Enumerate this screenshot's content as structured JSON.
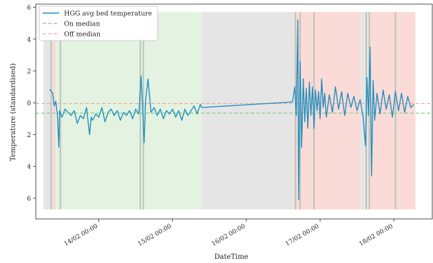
{
  "chart_data": {
    "type": "line",
    "xlabel": "DateTime",
    "ylabel": "Temperature (standardised)",
    "xlim": [
      "2025-02-13T03:30",
      "2025-02-18T12:30"
    ],
    "ylim": [
      -7.3,
      6.2
    ],
    "y_ticks": [
      {
        "value": 6,
        "label": "6"
      },
      {
        "value": 4,
        "label": "4"
      },
      {
        "value": 2,
        "label": "2"
      },
      {
        "value": 0,
        "label": "0"
      },
      {
        "value": -2,
        "label": "2"
      },
      {
        "value": -4,
        "label": "4"
      },
      {
        "value": -6,
        "label": "6"
      }
    ],
    "x_ticks": [
      {
        "value": "2025-02-14T00:00",
        "label": "14/02 00:00"
      },
      {
        "value": "2025-02-15T00:00",
        "label": "15/02 00:00"
      },
      {
        "value": "2025-02-16T00:00",
        "label": "16/02 00:00"
      },
      {
        "value": "2025-02-17T00:00",
        "label": "17/02 00:00"
      },
      {
        "value": "2025-02-18T00:00",
        "label": "18/02 00:00"
      }
    ],
    "legend": {
      "placement": "top-left",
      "entries": [
        {
          "label": "HGG avg bed temperature",
          "style": "solid",
          "color": "#1f8fbf"
        },
        {
          "label": "On median",
          "style": "dashed",
          "color": "#7fc97f"
        },
        {
          "label": "Off median",
          "style": "dashed",
          "color": "#f4a49a"
        }
      ]
    },
    "reference_lines": [
      {
        "name": "On median",
        "y": -0.65,
        "color": "#7fc97f"
      },
      {
        "name": "Off median",
        "y": -0.05,
        "color": "#f4a49a"
      }
    ],
    "regions": [
      {
        "start": "2025-02-13T09:00",
        "end": "2025-02-13T10:00",
        "state": "off",
        "color": "#fadbd8"
      },
      {
        "start": "2025-02-13T10:00",
        "end": "2025-02-15T09:30",
        "state": "on",
        "color": "#e3f2e1"
      },
      {
        "start": "2025-02-15T09:30",
        "end": "2025-02-16T15:30",
        "state": "idle",
        "color": "#e5e5e5"
      },
      {
        "start": "2025-02-16T15:30",
        "end": "2025-02-17T13:00",
        "state": "off",
        "color": "#fadbd8"
      },
      {
        "start": "2025-02-17T13:00",
        "end": "2025-02-17T15:30",
        "state": "idle",
        "color": "#e5e5e5"
      },
      {
        "start": "2025-02-17T15:30",
        "end": "2025-02-18T07:00",
        "state": "off",
        "color": "#fadbd8"
      },
      {
        "start": "2025-02-13T06:00",
        "end": "2025-02-13T09:00",
        "state": "idle",
        "color": "#e5e5e5"
      }
    ],
    "transition_lines": [
      "2025-02-13T08:30",
      "2025-02-13T11:30",
      "2025-02-14T13:30",
      "2025-02-14T14:30",
      "2025-02-16T16:00",
      "2025-02-16T17:30",
      "2025-02-16T22:00",
      "2025-02-17T15:00",
      "2025-02-17T16:00",
      "2025-02-18T00:30"
    ],
    "series": [
      {
        "name": "HGG avg bed temperature",
        "color": "#1f8fbf",
        "points": [
          [
            "2025-02-13T08:00",
            0.85
          ],
          [
            "2025-02-13T09:00",
            0.6
          ],
          [
            "2025-02-13T09:30",
            -0.2
          ],
          [
            "2025-02-13T10:00",
            0.1
          ],
          [
            "2025-02-13T10:30",
            -0.7
          ],
          [
            "2025-02-13T11:00",
            -2.8
          ],
          [
            "2025-02-13T11:15",
            -0.5
          ],
          [
            "2025-02-13T12:00",
            -0.9
          ],
          [
            "2025-02-13T13:00",
            -0.4
          ],
          [
            "2025-02-13T14:00",
            -0.6
          ],
          [
            "2025-02-13T15:00",
            -0.8
          ],
          [
            "2025-02-13T16:00",
            -0.5
          ],
          [
            "2025-02-13T17:00",
            -1.3
          ],
          [
            "2025-02-13T18:00",
            -0.8
          ],
          [
            "2025-02-13T19:00",
            -1.0
          ],
          [
            "2025-02-13T20:00",
            -0.3
          ],
          [
            "2025-02-13T21:00",
            -2.0
          ],
          [
            "2025-02-13T21:30",
            -0.9
          ],
          [
            "2025-02-13T22:00",
            -1.1
          ],
          [
            "2025-02-13T23:00",
            -0.7
          ],
          [
            "2025-02-14T00:00",
            -0.9
          ],
          [
            "2025-02-14T01:00",
            -0.3
          ],
          [
            "2025-02-14T02:00",
            -1.2
          ],
          [
            "2025-02-14T03:00",
            -0.6
          ],
          [
            "2025-02-14T04:00",
            -0.4
          ],
          [
            "2025-02-14T05:00",
            -0.8
          ],
          [
            "2025-02-14T06:00",
            -0.5
          ],
          [
            "2025-02-14T07:00",
            -1.1
          ],
          [
            "2025-02-14T08:00",
            -0.6
          ],
          [
            "2025-02-14T09:00",
            -0.8
          ],
          [
            "2025-02-14T10:00",
            -0.5
          ],
          [
            "2025-02-14T11:00",
            -1.0
          ],
          [
            "2025-02-14T12:00",
            -0.4
          ],
          [
            "2025-02-14T13:00",
            -0.7
          ],
          [
            "2025-02-14T13:45",
            1.7
          ],
          [
            "2025-02-14T14:15",
            -0.4
          ],
          [
            "2025-02-14T14:45",
            -2.5
          ],
          [
            "2025-02-14T15:15",
            0.2
          ],
          [
            "2025-02-14T16:00",
            1.5
          ],
          [
            "2025-02-14T17:00",
            -0.6
          ],
          [
            "2025-02-14T18:00",
            -0.3
          ],
          [
            "2025-02-14T19:00",
            -0.8
          ],
          [
            "2025-02-14T20:00",
            -0.4
          ],
          [
            "2025-02-14T21:00",
            -1.0
          ],
          [
            "2025-02-14T22:00",
            -0.5
          ],
          [
            "2025-02-14T23:00",
            -0.7
          ],
          [
            "2025-02-15T00:00",
            -0.4
          ],
          [
            "2025-02-15T01:00",
            -0.9
          ],
          [
            "2025-02-15T02:00",
            -0.5
          ],
          [
            "2025-02-15T03:00",
            -1.1
          ],
          [
            "2025-02-15T04:00",
            -0.4
          ],
          [
            "2025-02-15T05:00",
            -0.8
          ],
          [
            "2025-02-15T06:00",
            -0.5
          ],
          [
            "2025-02-15T07:00",
            -0.2
          ],
          [
            "2025-02-15T08:00",
            -0.7
          ],
          [
            "2025-02-15T09:00",
            -0.1
          ],
          [
            "2025-02-15T09:30",
            -0.3
          ],
          [
            "2025-02-16T15:00",
            0.05
          ],
          [
            "2025-02-16T15:45",
            1.0
          ],
          [
            "2025-02-16T16:15",
            -0.8
          ],
          [
            "2025-02-16T16:45",
            5.2
          ],
          [
            "2025-02-16T17:00",
            -6.1
          ],
          [
            "2025-02-16T17:30",
            2.6
          ],
          [
            "2025-02-16T18:00",
            -2.8
          ],
          [
            "2025-02-16T18:30",
            1.5
          ],
          [
            "2025-02-16T19:00",
            -1.2
          ],
          [
            "2025-02-16T19:30",
            0.9
          ],
          [
            "2025-02-16T20:00",
            -1.6
          ],
          [
            "2025-02-16T20:30",
            1.3
          ],
          [
            "2025-02-16T21:00",
            -0.8
          ],
          [
            "2025-02-16T21:30",
            1.0
          ],
          [
            "2025-02-16T22:00",
            -1.6
          ],
          [
            "2025-02-16T22:30",
            0.8
          ],
          [
            "2025-02-16T23:00",
            -0.5
          ],
          [
            "2025-02-16T23:30",
            0.7
          ],
          [
            "2025-02-17T00:00",
            -1.0
          ],
          [
            "2025-02-17T00:30",
            1.5
          ],
          [
            "2025-02-17T01:00",
            -0.3
          ],
          [
            "2025-02-17T01:30",
            0.6
          ],
          [
            "2025-02-17T02:00",
            -0.9
          ],
          [
            "2025-02-17T03:00",
            0.5
          ],
          [
            "2025-02-17T04:00",
            -0.6
          ],
          [
            "2025-02-17T05:00",
            1.0
          ],
          [
            "2025-02-17T06:00",
            -0.4
          ],
          [
            "2025-02-17T07:00",
            0.7
          ],
          [
            "2025-02-17T08:00",
            -0.8
          ],
          [
            "2025-02-17T09:00",
            0.6
          ],
          [
            "2025-02-17T10:00",
            -0.3
          ],
          [
            "2025-02-17T11:00",
            0.4
          ],
          [
            "2025-02-17T12:00",
            -0.5
          ],
          [
            "2025-02-17T13:00",
            0.2
          ],
          [
            "2025-02-17T14:00",
            -0.9
          ],
          [
            "2025-02-17T14:45",
            -2.7
          ],
          [
            "2025-02-17T15:15",
            1.6
          ],
          [
            "2025-02-17T15:45",
            -0.8
          ],
          [
            "2025-02-17T16:15",
            3.5
          ],
          [
            "2025-02-17T16:45",
            -4.6
          ],
          [
            "2025-02-17T17:15",
            1.4
          ],
          [
            "2025-02-17T17:45",
            -1.1
          ],
          [
            "2025-02-17T18:30",
            0.6
          ],
          [
            "2025-02-17T19:30",
            -0.7
          ],
          [
            "2025-02-17T20:30",
            0.8
          ],
          [
            "2025-02-17T21:30",
            -0.4
          ],
          [
            "2025-02-17T22:30",
            0.5
          ],
          [
            "2025-02-17T23:30",
            -0.9
          ],
          [
            "2025-02-18T00:30",
            0.7
          ],
          [
            "2025-02-18T01:30",
            -0.5
          ],
          [
            "2025-02-18T02:30",
            0.6
          ],
          [
            "2025-02-18T03:30",
            -0.6
          ],
          [
            "2025-02-18T04:30",
            0.4
          ],
          [
            "2025-02-18T05:30",
            -0.3
          ],
          [
            "2025-02-18T06:30",
            -0.1
          ]
        ]
      }
    ]
  }
}
